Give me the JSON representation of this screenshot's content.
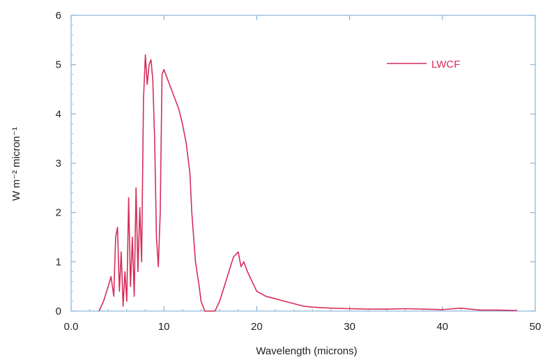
{
  "chart_data": {
    "type": "line",
    "xlabel": "Wavelength (microns)",
    "ylabel": "W m⁻² micron⁻¹",
    "xlim": [
      0,
      50
    ],
    "ylim": [
      0,
      6
    ],
    "x_ticks": [
      "0.0",
      "10",
      "20",
      "30",
      "40",
      "50"
    ],
    "y_ticks": [
      "0",
      "1",
      "2",
      "3",
      "4",
      "5",
      "6"
    ],
    "grid": false,
    "legend_position": "top-right",
    "colors": {
      "series": "#d62d5a",
      "axis": "#8ab4d8"
    },
    "series": [
      {
        "name": "LWCF",
        "x": [
          3.0,
          3.5,
          4.0,
          4.3,
          4.6,
          4.8,
          5.0,
          5.2,
          5.4,
          5.6,
          5.8,
          6.0,
          6.2,
          6.4,
          6.6,
          6.8,
          7.0,
          7.2,
          7.4,
          7.6,
          7.8,
          8.0,
          8.2,
          8.4,
          8.6,
          8.8,
          9.0,
          9.2,
          9.4,
          9.6,
          9.8,
          10.0,
          10.4,
          10.8,
          11.2,
          11.6,
          12.0,
          12.4,
          12.8,
          13.0,
          13.4,
          13.8,
          14.0,
          14.4,
          15.0,
          15.5,
          16.0,
          16.5,
          17.0,
          17.5,
          18.0,
          18.3,
          18.6,
          19.0,
          19.5,
          20.0,
          21.0,
          22.0,
          23.0,
          24.0,
          25.0,
          26.0,
          28.0,
          30.0,
          32.0,
          34.0,
          36.0,
          38.0,
          40.0,
          42.0,
          44.0,
          46.0,
          48.0
        ],
        "values": [
          0.0,
          0.2,
          0.5,
          0.7,
          0.3,
          1.5,
          1.7,
          0.4,
          1.2,
          0.1,
          0.8,
          0.2,
          2.3,
          0.5,
          1.5,
          0.3,
          2.5,
          0.8,
          2.1,
          1.0,
          4.3,
          5.2,
          4.6,
          5.0,
          5.1,
          4.7,
          3.5,
          1.5,
          0.9,
          2.0,
          4.8,
          4.9,
          4.7,
          4.5,
          4.3,
          4.1,
          3.8,
          3.4,
          2.8,
          2.0,
          1.0,
          0.5,
          0.2,
          0.0,
          0.0,
          0.0,
          0.2,
          0.5,
          0.8,
          1.1,
          1.2,
          0.9,
          1.0,
          0.8,
          0.6,
          0.4,
          0.3,
          0.25,
          0.2,
          0.15,
          0.1,
          0.08,
          0.06,
          0.05,
          0.04,
          0.04,
          0.05,
          0.04,
          0.03,
          0.06,
          0.02,
          0.02,
          0.01
        ]
      }
    ]
  }
}
